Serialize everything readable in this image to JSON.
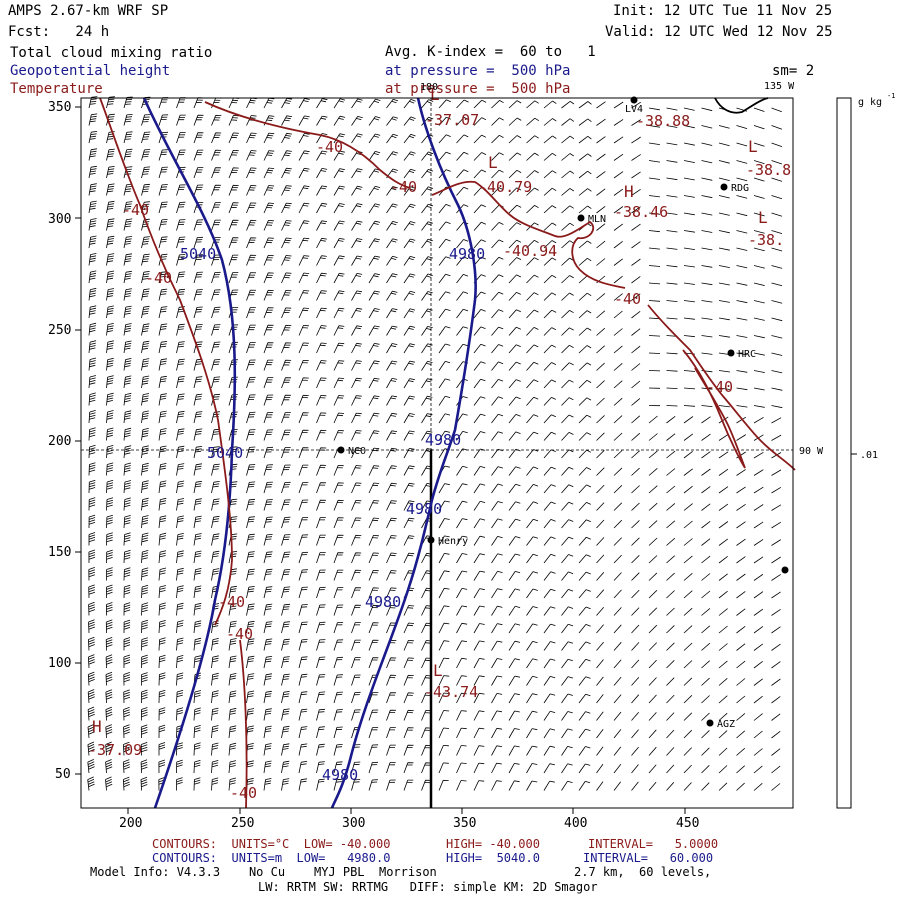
{
  "header": {
    "model": "AMPS 2.67-km WRF SP",
    "forecast": "Fcst:   24 h",
    "init": "Init: 12 UTC Tue 11 Nov 25",
    "valid": "Valid: 12 UTC Wed 12 Nov 25",
    "field1": "Total cloud mixing ratio",
    "field2": "Geopotential height",
    "field3": "Temperature",
    "kindex": "Avg. K-index =  60 to   1",
    "pres1": "at pressure =  500 hPa",
    "pres2": "at pressure =  500 hPa",
    "smooth": "sm= 2"
  },
  "map": {
    "x_ticks": [
      "200",
      "250",
      "300",
      "350",
      "400",
      "450"
    ],
    "y_ticks": [
      "350",
      "300",
      "250",
      "200",
      "150",
      "100",
      "50"
    ],
    "lon_labels": [
      "135 W",
      "90 W",
      "180"
    ],
    "colorbar_unit": "g kg",
    "colorbar_unit_exp": "-1",
    "colorbar_value": ".01",
    "stations": [
      {
        "name": "LV4"
      },
      {
        "name": "RDG"
      },
      {
        "name": "MLN"
      },
      {
        "name": "HRC"
      },
      {
        "name": "NCO"
      },
      {
        "name": "Henry"
      },
      {
        "name": "AGZ"
      },
      {
        "name": ""
      }
    ],
    "temp_labels": [
      "-40",
      "-40",
      "-40",
      "-40",
      "-40",
      "-40",
      "-40",
      "-40",
      "-40",
      "-40",
      "-37.07",
      "-40.79",
      "-38.46",
      "-40.94",
      "-38.88",
      "-38.8",
      "-38.",
      "-43.74",
      "-37.09"
    ],
    "lh_marks": [
      "L",
      "H",
      "L",
      "L",
      "L",
      "L",
      "H"
    ],
    "height_labels": [
      "5040",
      "5040",
      "4980",
      "4980",
      "4980",
      "4980",
      "4980"
    ]
  },
  "footer": {
    "row1_a": "CONTOURS:  UNITS=°C  LOW= -40.000",
    "row1_b": "HIGH= -40.000",
    "row1_c": "INTERVAL=   5.0000",
    "row2_a": "CONTOURS:  UNITS=m  LOW=   4980.0",
    "row2_b": "HIGH=  5040.0",
    "row2_c": "INTERVAL=   60.000",
    "model_info": "Model Info: V4.3.3    No Cu    MYJ PBL  Morrison",
    "res": "2.7 km,  60 levels,",
    "physics": "LW: RRTM SW: RRTMG   DIFF: simple KM: 2D Smagor"
  },
  "colors": {
    "height": "#1a1a8c",
    "temperature": "#8b1a1a",
    "barb": "#000000"
  }
}
